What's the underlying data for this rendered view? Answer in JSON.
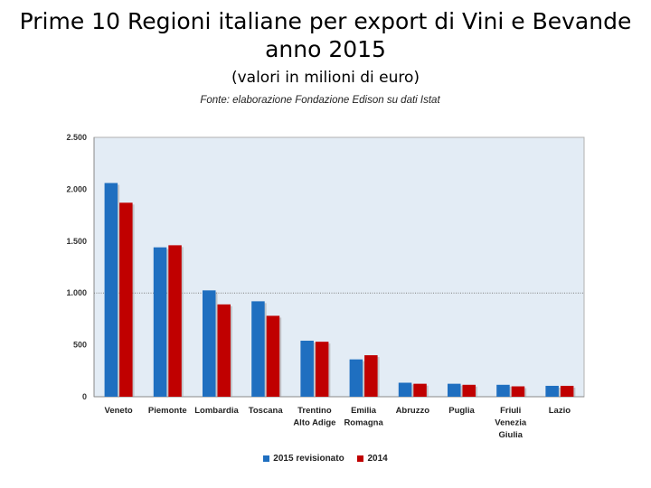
{
  "page": {
    "title_line1": "Prime 10 Regioni italiane per export di Vini e Bevande",
    "title_line2": "anno 2015",
    "subtitle": "(valori in milioni di euro)",
    "source": "Fonte: elaborazione Fondazione Edison su dati Istat"
  },
  "colors": {
    "series1": "#1f6fc0",
    "series2": "#c00000",
    "plot_bg": "#e3ecf5",
    "grid": "#808080"
  },
  "chart_data": {
    "type": "bar",
    "title": "Prime 10 Regioni italiane per export di Vini e Bevande anno 2015",
    "subtitle": "(valori in milioni di euro)",
    "categories": [
      [
        "Veneto"
      ],
      [
        "Piemonte"
      ],
      [
        "Lombardia"
      ],
      [
        "Toscana"
      ],
      [
        "Trentino",
        "Alto Adige"
      ],
      [
        "Emilia",
        "Romagna"
      ],
      [
        "Abruzzo"
      ],
      [
        "Puglia"
      ],
      [
        "Friuli",
        "Venezia",
        "Giulia"
      ],
      [
        "Lazio"
      ]
    ],
    "series": [
      {
        "name": "2015 revisionato",
        "values": [
          2060,
          1440,
          1025,
          920,
          540,
          360,
          135,
          125,
          115,
          105
        ]
      },
      {
        "name": "2014",
        "values": [
          1870,
          1460,
          890,
          780,
          530,
          400,
          125,
          115,
          100,
          105
        ]
      }
    ],
    "ylim": [
      0,
      2500
    ],
    "yticks": [
      0,
      500,
      1000,
      1500,
      2000,
      2500
    ],
    "ytick_labels": [
      "0",
      "500",
      "1.000",
      "1.500",
      "2.000",
      "2.500"
    ],
    "gridlines": [
      1000
    ],
    "xlabel": "",
    "ylabel": "",
    "legend_position": "bottom"
  }
}
